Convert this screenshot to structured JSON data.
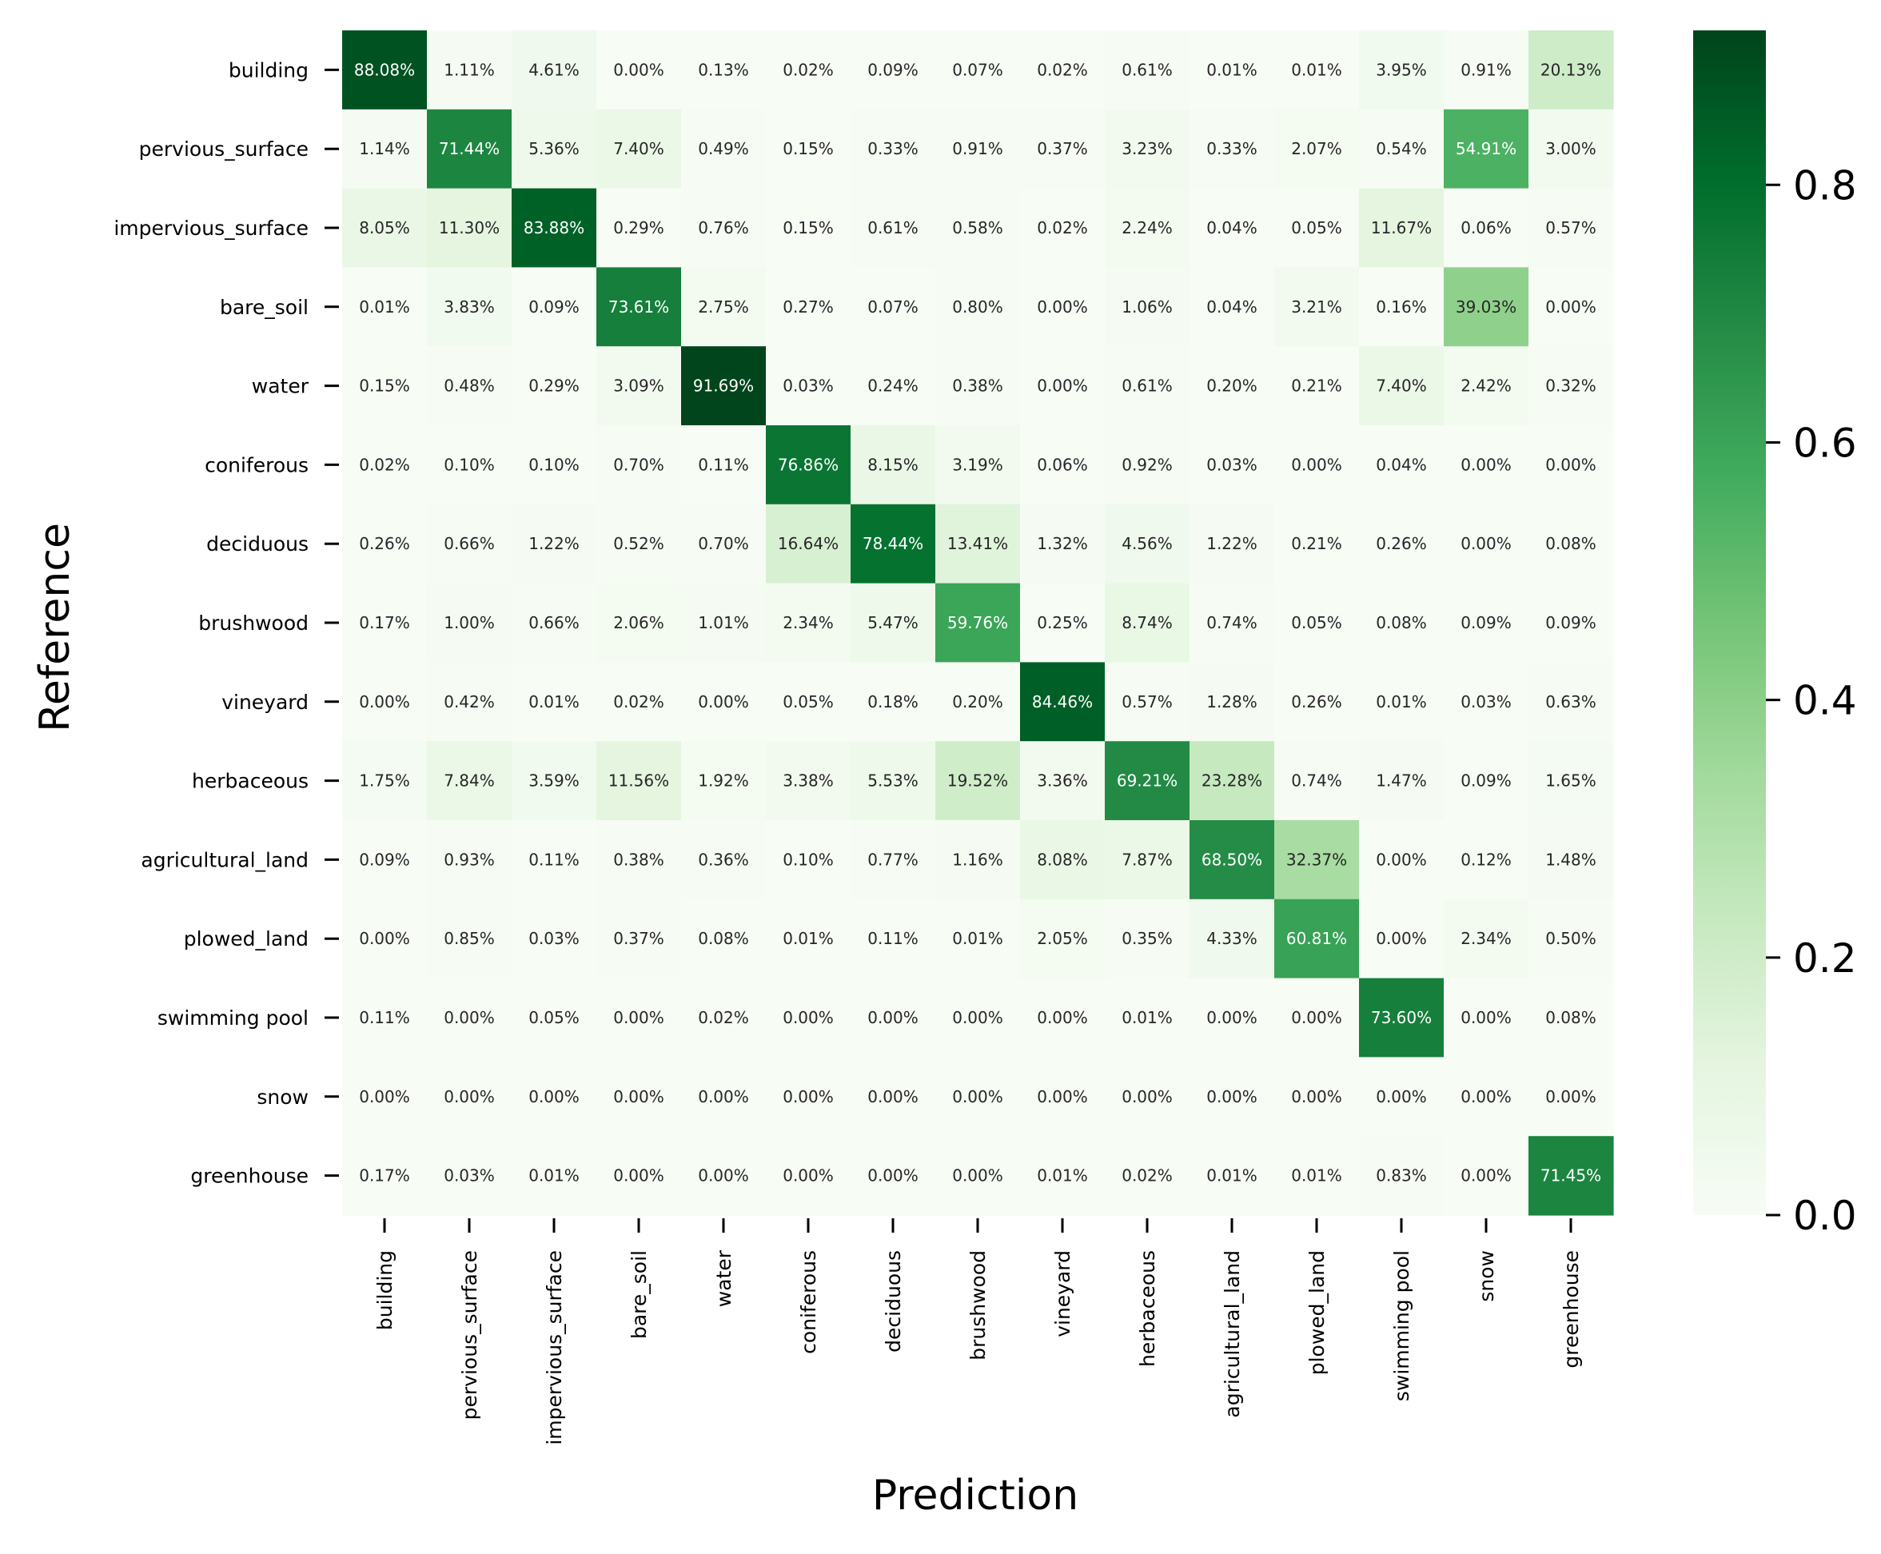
{
  "chart_data": {
    "type": "heatmap",
    "xlabel": "Prediction",
    "ylabel": "Reference",
    "rows": [
      "building",
      "pervious_surface",
      "impervious_surface",
      "bare_soil",
      "water",
      "coniferous",
      "deciduous",
      "brushwood",
      "vineyard",
      "herbaceous",
      "agricultural_land",
      "plowed_land",
      "swimming pool",
      "snow",
      "greenhouse"
    ],
    "columns": [
      "building",
      "pervious_surface",
      "impervious_surface",
      "bare_soil",
      "water",
      "coniferous",
      "deciduous",
      "brushwood",
      "vineyard",
      "herbaceous",
      "agricultural_land",
      "plowed_land",
      "swimming pool",
      "snow",
      "greenhouse"
    ],
    "values": [
      [
        "88.08%",
        "1.11%",
        "4.61%",
        "0.00%",
        "0.13%",
        "0.02%",
        "0.09%",
        "0.07%",
        "0.02%",
        "0.61%",
        "0.01%",
        "0.01%",
        "3.95%",
        "0.91%",
        "20.13%"
      ],
      [
        "1.14%",
        "71.44%",
        "5.36%",
        "7.40%",
        "0.49%",
        "0.15%",
        "0.33%",
        "0.91%",
        "0.37%",
        "3.23%",
        "0.33%",
        "2.07%",
        "0.54%",
        "54.91%",
        "3.00%"
      ],
      [
        "8.05%",
        "11.30%",
        "83.88%",
        "0.29%",
        "0.76%",
        "0.15%",
        "0.61%",
        "0.58%",
        "0.02%",
        "2.24%",
        "0.04%",
        "0.05%",
        "11.67%",
        "0.06%",
        "0.57%"
      ],
      [
        "0.01%",
        "3.83%",
        "0.09%",
        "73.61%",
        "2.75%",
        "0.27%",
        "0.07%",
        "0.80%",
        "0.00%",
        "1.06%",
        "0.04%",
        "3.21%",
        "0.16%",
        "39.03%",
        "0.00%"
      ],
      [
        "0.15%",
        "0.48%",
        "0.29%",
        "3.09%",
        "91.69%",
        "0.03%",
        "0.24%",
        "0.38%",
        "0.00%",
        "0.61%",
        "0.20%",
        "0.21%",
        "7.40%",
        "2.42%",
        "0.32%"
      ],
      [
        "0.02%",
        "0.10%",
        "0.10%",
        "0.70%",
        "0.11%",
        "76.86%",
        "8.15%",
        "3.19%",
        "0.06%",
        "0.92%",
        "0.03%",
        "0.00%",
        "0.04%",
        "0.00%",
        "0.00%"
      ],
      [
        "0.26%",
        "0.66%",
        "1.22%",
        "0.52%",
        "0.70%",
        "16.64%",
        "78.44%",
        "13.41%",
        "1.32%",
        "4.56%",
        "1.22%",
        "0.21%",
        "0.26%",
        "0.00%",
        "0.08%"
      ],
      [
        "0.17%",
        "1.00%",
        "0.66%",
        "2.06%",
        "1.01%",
        "2.34%",
        "5.47%",
        "59.76%",
        "0.25%",
        "8.74%",
        "0.74%",
        "0.05%",
        "0.08%",
        "0.09%",
        "0.09%"
      ],
      [
        "0.00%",
        "0.42%",
        "0.01%",
        "0.02%",
        "0.00%",
        "0.05%",
        "0.18%",
        "0.20%",
        "84.46%",
        "0.57%",
        "1.28%",
        "0.26%",
        "0.01%",
        "0.03%",
        "0.63%"
      ],
      [
        "1.75%",
        "7.84%",
        "3.59%",
        "11.56%",
        "1.92%",
        "3.38%",
        "5.53%",
        "19.52%",
        "3.36%",
        "69.21%",
        "23.28%",
        "0.74%",
        "1.47%",
        "0.09%",
        "1.65%"
      ],
      [
        "0.09%",
        "0.93%",
        "0.11%",
        "0.38%",
        "0.36%",
        "0.10%",
        "0.77%",
        "1.16%",
        "8.08%",
        "7.87%",
        "68.50%",
        "32.37%",
        "0.00%",
        "0.12%",
        "1.48%"
      ],
      [
        "0.00%",
        "0.85%",
        "0.03%",
        "0.37%",
        "0.08%",
        "0.01%",
        "0.11%",
        "0.01%",
        "2.05%",
        "0.35%",
        "4.33%",
        "60.81%",
        "0.00%",
        "2.34%",
        "0.50%"
      ],
      [
        "0.11%",
        "0.00%",
        "0.05%",
        "0.00%",
        "0.02%",
        "0.00%",
        "0.00%",
        "0.00%",
        "0.00%",
        "0.01%",
        "0.00%",
        "0.00%",
        "73.60%",
        "0.00%",
        "0.08%"
      ],
      [
        "0.00%",
        "0.00%",
        "0.00%",
        "0.00%",
        "0.00%",
        "0.00%",
        "0.00%",
        "0.00%",
        "0.00%",
        "0.00%",
        "0.00%",
        "0.00%",
        "0.00%",
        "0.00%",
        "0.00%"
      ],
      [
        "0.17%",
        "0.03%",
        "0.01%",
        "0.00%",
        "0.00%",
        "0.00%",
        "0.00%",
        "0.00%",
        "0.01%",
        "0.02%",
        "0.01%",
        "0.01%",
        "0.83%",
        "0.00%",
        "71.45%"
      ]
    ],
    "colormap": "Greens",
    "colorbar": {
      "range": [
        0,
        0.92
      ],
      "ticks": [
        0.0,
        0.2,
        0.4,
        0.6,
        0.8
      ],
      "tick_labels": [
        "0.0",
        "0.2",
        "0.4",
        "0.6",
        "0.8"
      ]
    },
    "grid": false
  }
}
